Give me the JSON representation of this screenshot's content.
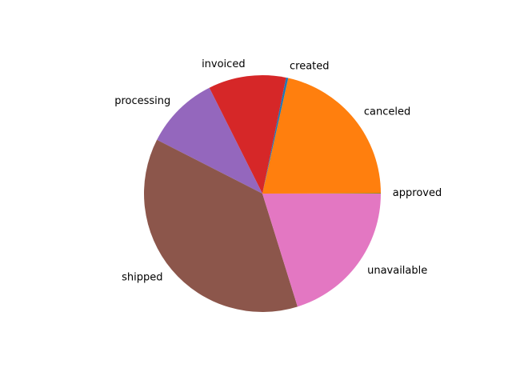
{
  "chart_data": {
    "type": "pie",
    "title": "",
    "start_angle_deg": 0,
    "direction": "counterclockwise",
    "slices": [
      {
        "label": "approved",
        "value": 0.05,
        "color": "#2ca02c"
      },
      {
        "label": "canceled",
        "value": 21.45,
        "color": "#ff7f0e"
      },
      {
        "label": "created",
        "value": 0.3,
        "color": "#1f77b4"
      },
      {
        "label": "invoiced",
        "value": 10.6,
        "color": "#d62728"
      },
      {
        "label": "processing",
        "value": 10.1,
        "color": "#9467bd"
      },
      {
        "label": "shipped",
        "value": 37.3,
        "color": "#8c564b"
      },
      {
        "label": "unavailable",
        "value": 20.2,
        "color": "#e377c2"
      }
    ]
  }
}
